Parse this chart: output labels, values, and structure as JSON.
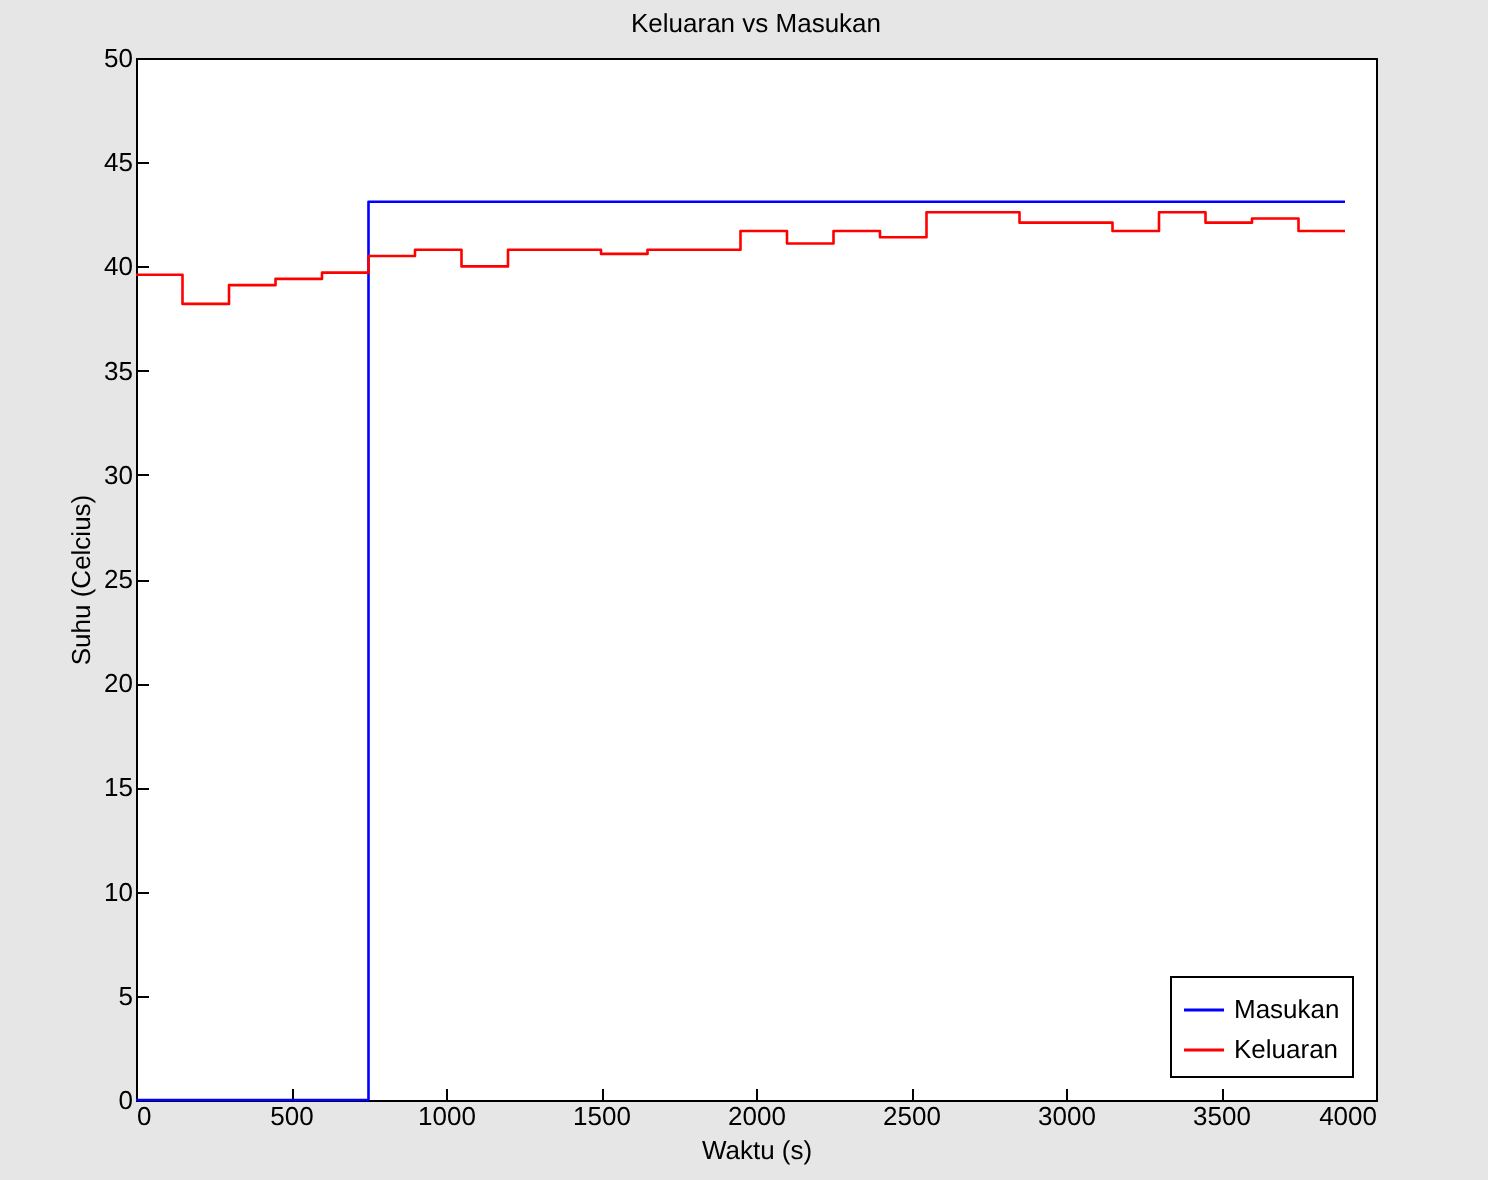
{
  "chart_data": {
    "type": "step",
    "title": "Keluaran vs Masukan",
    "xlabel": "Waktu (s)",
    "ylabel": "Suhu (Celcius)",
    "xlim": [
      0,
      4000
    ],
    "xticks": [
      0,
      500,
      1000,
      1500,
      2000,
      2500,
      3000,
      3500,
      4000
    ],
    "ylim": [
      0,
      50
    ],
    "yticks": [
      0,
      5,
      10,
      15,
      20,
      25,
      30,
      35,
      40,
      45,
      50
    ],
    "grid": false,
    "legend": "bottom right",
    "series": [
      {
        "name": "Masukan",
        "color": "#0000ff",
        "x": [
          0,
          750,
          3900
        ],
        "values": [
          0,
          43.1,
          43.1
        ]
      },
      {
        "name": "Keluaran",
        "color": "#ff0000",
        "x": [
          0,
          150,
          300,
          450,
          600,
          750,
          900,
          1050,
          1200,
          1500,
          1650,
          1950,
          2100,
          2250,
          2400,
          2550,
          2850,
          3150,
          3300,
          3450,
          3600,
          3750,
          3900
        ],
        "values": [
          39.6,
          38.2,
          39.1,
          39.4,
          39.7,
          40.5,
          40.8,
          40.0,
          40.8,
          40.6,
          40.8,
          41.7,
          41.1,
          41.7,
          41.4,
          42.6,
          42.1,
          41.7,
          42.6,
          42.1,
          42.3,
          41.7,
          41.7
        ]
      }
    ]
  }
}
